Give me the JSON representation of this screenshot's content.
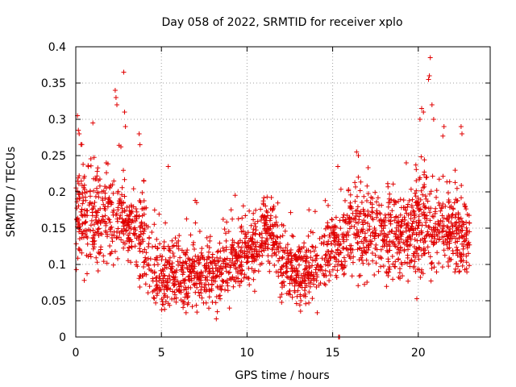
{
  "chart_data": {
    "type": "scatter",
    "title": "Day 058 of 2022, SRMTID for receiver xplo",
    "xlabel": "GPS time / hours",
    "ylabel": "SRMTID / TECUs",
    "xlim": [
      0,
      24.2
    ],
    "ylim": [
      0,
      0.4
    ],
    "x_ticks": [
      0,
      5,
      10,
      15,
      20
    ],
    "x_tick_labels": [
      "0",
      "5",
      "10",
      "15",
      "20"
    ],
    "y_ticks": [
      0,
      0.05,
      0.1,
      0.15,
      0.2,
      0.25,
      0.3,
      0.35,
      0.4
    ],
    "y_tick_labels": [
      "0",
      "0.05",
      "0.1",
      "0.15",
      "0.2",
      "0.25",
      "0.3",
      "0.35",
      "0.4"
    ],
    "grid": true,
    "marker": "+",
    "color": "#e00000",
    "series": [
      {
        "name": "SRMTID",
        "profile_x": [
          0,
          0.5,
          1,
          1.5,
          2,
          2.5,
          3,
          3.5,
          4,
          4.5,
          5,
          5.5,
          6,
          6.5,
          7,
          7.5,
          8,
          8.5,
          9,
          9.5,
          10,
          10.5,
          11,
          11.5,
          12,
          12.5,
          13,
          13.5,
          14,
          14.5,
          15,
          15.5,
          16,
          16.5,
          17,
          17.5,
          18,
          18.5,
          19,
          19.5,
          20,
          20.5,
          21,
          21.5,
          22,
          22.5,
          23
        ],
        "profile_median": [
          0.17,
          0.17,
          0.16,
          0.17,
          0.16,
          0.16,
          0.15,
          0.15,
          0.14,
          0.09,
          0.08,
          0.09,
          0.09,
          0.08,
          0.09,
          0.09,
          0.08,
          0.09,
          0.1,
          0.11,
          0.12,
          0.12,
          0.15,
          0.14,
          0.1,
          0.09,
          0.09,
          0.09,
          0.1,
          0.11,
          0.13,
          0.12,
          0.15,
          0.15,
          0.14,
          0.15,
          0.15,
          0.14,
          0.13,
          0.14,
          0.15,
          0.16,
          0.15,
          0.15,
          0.15,
          0.14,
          0.13
        ],
        "profile_spread": [
          0.05,
          0.05,
          0.05,
          0.04,
          0.04,
          0.04,
          0.03,
          0.04,
          0.05,
          0.03,
          0.03,
          0.03,
          0.03,
          0.03,
          0.03,
          0.03,
          0.03,
          0.03,
          0.03,
          0.03,
          0.03,
          0.03,
          0.03,
          0.03,
          0.03,
          0.03,
          0.03,
          0.03,
          0.03,
          0.03,
          0.03,
          0.03,
          0.04,
          0.04,
          0.04,
          0.04,
          0.04,
          0.04,
          0.04,
          0.04,
          0.05,
          0.05,
          0.04,
          0.04,
          0.04,
          0.04,
          0.04
        ],
        "sample_count": 2300,
        "outliers": [
          [
            0.1,
            0.305
          ],
          [
            0.15,
            0.285
          ],
          [
            0.2,
            0.28
          ],
          [
            1.0,
            0.295
          ],
          [
            2.3,
            0.34
          ],
          [
            2.35,
            0.33
          ],
          [
            2.4,
            0.32
          ],
          [
            2.8,
            0.365
          ],
          [
            2.85,
            0.31
          ],
          [
            2.9,
            0.29
          ],
          [
            3.7,
            0.28
          ],
          [
            3.75,
            0.265
          ],
          [
            5.4,
            0.235
          ],
          [
            15.3,
            0.235
          ],
          [
            16.4,
            0.255
          ],
          [
            16.5,
            0.25
          ],
          [
            19.3,
            0.24
          ],
          [
            20.1,
            0.3
          ],
          [
            20.2,
            0.315
          ],
          [
            20.3,
            0.31
          ],
          [
            20.6,
            0.355
          ],
          [
            20.65,
            0.36
          ],
          [
            20.7,
            0.385
          ],
          [
            20.8,
            0.32
          ],
          [
            20.9,
            0.3
          ],
          [
            21.5,
            0.29
          ],
          [
            22.5,
            0.29
          ],
          [
            22.55,
            0.28
          ],
          [
            15.35,
            0.0
          ],
          [
            15.4,
            0.0
          ]
        ]
      }
    ]
  }
}
